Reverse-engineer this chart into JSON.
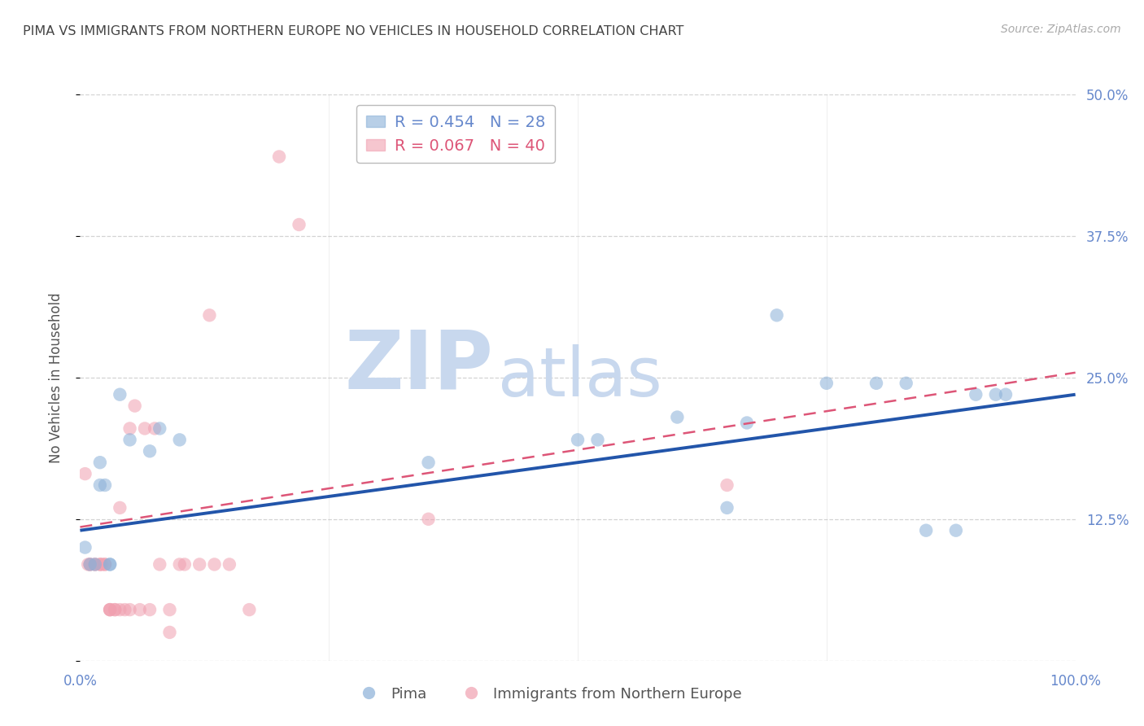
{
  "title": "PIMA VS IMMIGRANTS FROM NORTHERN EUROPE NO VEHICLES IN HOUSEHOLD CORRELATION CHART",
  "source": "Source: ZipAtlas.com",
  "ylabel": "No Vehicles in Household",
  "watermark_zip": "ZIP",
  "watermark_atlas": "atlas",
  "legend_blue_R": "R = 0.454",
  "legend_blue_N": "N = 28",
  "legend_pink_R": "R = 0.067",
  "legend_pink_N": "N = 40",
  "xlim": [
    0,
    1.0
  ],
  "ylim": [
    0,
    0.5
  ],
  "ytick_vals": [
    0.0,
    0.125,
    0.25,
    0.375,
    0.5
  ],
  "ytick_labels": [
    "",
    "12.5%",
    "25.0%",
    "37.5%",
    "50.0%"
  ],
  "blue_scatter_x": [
    0.005,
    0.01,
    0.015,
    0.02,
    0.02,
    0.025,
    0.03,
    0.03,
    0.04,
    0.05,
    0.07,
    0.08,
    0.1,
    0.35,
    0.5,
    0.52,
    0.6,
    0.65,
    0.67,
    0.7,
    0.75,
    0.8,
    0.83,
    0.85,
    0.88,
    0.9,
    0.92,
    0.93
  ],
  "blue_scatter_y": [
    0.1,
    0.085,
    0.085,
    0.155,
    0.175,
    0.155,
    0.085,
    0.085,
    0.235,
    0.195,
    0.185,
    0.205,
    0.195,
    0.175,
    0.195,
    0.195,
    0.215,
    0.135,
    0.21,
    0.305,
    0.245,
    0.245,
    0.245,
    0.115,
    0.115,
    0.235,
    0.235,
    0.235
  ],
  "pink_scatter_x": [
    0.005,
    0.008,
    0.01,
    0.01,
    0.015,
    0.015,
    0.02,
    0.02,
    0.022,
    0.025,
    0.025,
    0.03,
    0.03,
    0.03,
    0.035,
    0.035,
    0.04,
    0.04,
    0.045,
    0.05,
    0.05,
    0.055,
    0.06,
    0.065,
    0.07,
    0.075,
    0.08,
    0.09,
    0.09,
    0.1,
    0.105,
    0.12,
    0.13,
    0.135,
    0.15,
    0.17,
    0.2,
    0.22,
    0.35,
    0.65
  ],
  "pink_scatter_y": [
    0.165,
    0.085,
    0.085,
    0.085,
    0.085,
    0.085,
    0.085,
    0.085,
    0.085,
    0.085,
    0.085,
    0.045,
    0.045,
    0.045,
    0.045,
    0.045,
    0.045,
    0.135,
    0.045,
    0.045,
    0.205,
    0.225,
    0.045,
    0.205,
    0.045,
    0.205,
    0.085,
    0.025,
    0.045,
    0.085,
    0.085,
    0.085,
    0.305,
    0.085,
    0.085,
    0.045,
    0.445,
    0.385,
    0.125,
    0.155
  ],
  "blue_line_x": [
    0.0,
    1.0
  ],
  "blue_line_y": [
    0.115,
    0.235
  ],
  "pink_line_x": [
    0.0,
    0.22
  ],
  "pink_line_y": [
    0.118,
    0.148
  ],
  "bg_color": "#ffffff",
  "blue_color": "#8ab0d8",
  "pink_color": "#f0a0b0",
  "blue_line_color": "#2255aa",
  "pink_line_color": "#dd5577",
  "grid_color": "#c8c8c8",
  "title_color": "#444444",
  "axis_label_color": "#555555",
  "tick_color": "#6688cc",
  "source_color": "#aaaaaa",
  "watermark_color": "#c8d8ee",
  "legend_border_color": "#bbbbbb"
}
